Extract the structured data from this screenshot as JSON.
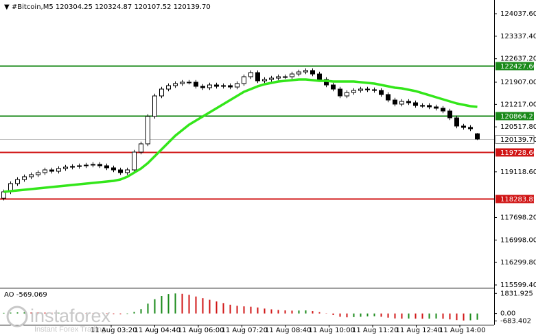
{
  "chart_data": {
    "type": "candlestick",
    "header": {
      "symbol": "#Bitcoin,M5",
      "open": "120304.25",
      "high": "120324.87",
      "low": "120107.52",
      "close": "120139.70"
    },
    "ylim": [
      115513.6,
      124463.8
    ],
    "yticks": [
      {
        "value": 124037.6,
        "label": "124037.60"
      },
      {
        "value": 123337.4,
        "label": "123337.40"
      },
      {
        "value": 122637.2,
        "label": "122637.20"
      },
      {
        "value": 121907,
        "label": "121907.00"
      },
      {
        "value": 121217,
        "label": "121217.00"
      },
      {
        "value": 120517.8,
        "label": "120517.80"
      },
      {
        "value": 119118.6,
        "label": "119118.60"
      },
      {
        "value": 117698.2,
        "label": "117698.20"
      },
      {
        "value": 116998,
        "label": "116998.00"
      },
      {
        "value": 116299.8,
        "label": "116299.80"
      },
      {
        "value": 115599.4,
        "label": "115599.40"
      }
    ],
    "open": [
      118300,
      118497,
      118753,
      118880,
      118966,
      119030,
      119094,
      119179,
      119136,
      119222,
      119264,
      119286,
      119307,
      119328,
      119350,
      119307,
      119243,
      119179,
      119094,
      119179,
      119733,
      119989,
      120841,
      121480,
      121693,
      121800,
      121864,
      121907,
      121907,
      121779,
      121736,
      121821,
      121779,
      121800,
      121757,
      121864,
      122077,
      122205,
      121949,
      121992,
      122034,
      122077,
      122077,
      122162,
      122226,
      122269,
      122162,
      121992,
      121821,
      121693,
      121480,
      121587,
      121651,
      121693,
      121672,
      121651,
      121523,
      121352,
      121225,
      121310,
      121267,
      121182,
      121182,
      121139,
      121097,
      121011,
      120798,
      120543,
      120500,
      120304.25
    ],
    "high": [
      118567,
      118823,
      118950,
      119036,
      119100,
      119164,
      119249,
      119249,
      119292,
      119334,
      119356,
      119377,
      119398,
      119420,
      119420,
      119377,
      119313,
      119249,
      119249,
      119803,
      120059,
      120911,
      121550,
      121763,
      121870,
      121934,
      121977,
      121977,
      121977,
      121849,
      121891,
      121891,
      121870,
      121870,
      121934,
      122147,
      122275,
      122275,
      122062,
      122104,
      122147,
      122147,
      122232,
      122296,
      122339,
      122339,
      122232,
      122062,
      121891,
      121763,
      121657,
      121721,
      121763,
      121763,
      121742,
      121721,
      121593,
      121422,
      121380,
      121380,
      121337,
      121252,
      121252,
      121209,
      121167,
      121081,
      120868,
      120613,
      120570,
      120324.87
    ],
    "low": [
      118230,
      118427,
      118683,
      118810,
      118896,
      118960,
      119024,
      119066,
      119066,
      119152,
      119194,
      119216,
      119237,
      119258,
      119237,
      119173,
      119109,
      119024,
      119024,
      119109,
      119663,
      119919,
      120771,
      121410,
      121623,
      121730,
      121794,
      121837,
      121709,
      121666,
      121666,
      121709,
      121709,
      121687,
      121687,
      121794,
      122007,
      121879,
      121879,
      121922,
      121964,
      122007,
      122007,
      122092,
      122156,
      122092,
      121922,
      121751,
      121623,
      121410,
      121410,
      121517,
      121581,
      121602,
      121581,
      121453,
      121282,
      121155,
      121155,
      121197,
      121112,
      121112,
      121069,
      121027,
      120941,
      120728,
      120473,
      120430,
      120388,
      120107.52
    ],
    "close": [
      118497,
      118753,
      118880,
      118966,
      119030,
      119094,
      119179,
      119136,
      119222,
      119264,
      119286,
      119307,
      119328,
      119350,
      119307,
      119243,
      119179,
      119094,
      119179,
      119733,
      119989,
      120841,
      121480,
      121693,
      121800,
      121864,
      121907,
      121907,
      121779,
      121736,
      121821,
      121779,
      121800,
      121757,
      121864,
      122077,
      122205,
      121949,
      121992,
      122034,
      122077,
      122077,
      122162,
      122226,
      122269,
      122162,
      121992,
      121821,
      121693,
      121480,
      121587,
      121651,
      121693,
      121672,
      121651,
      121523,
      121352,
      121225,
      121310,
      121267,
      121182,
      121182,
      121139,
      121097,
      121011,
      120798,
      120543,
      120500,
      120458,
      120139.7
    ],
    "ma": {
      "color": "#33e61a",
      "values": [
        118497,
        118518,
        118540,
        118561,
        118582,
        118604,
        118625,
        118646,
        118668,
        118689,
        118710,
        118731,
        118753,
        118774,
        118795,
        118817,
        118838,
        118881,
        118966,
        119094,
        119222,
        119392,
        119605,
        119818,
        120031,
        120244,
        120415,
        120585,
        120713,
        120841,
        120969,
        121097,
        121225,
        121353,
        121480,
        121608,
        121694,
        121779,
        121843,
        121885,
        121928,
        121949,
        121971,
        121992,
        121992,
        121971,
        121949,
        121949,
        121928,
        121928,
        121928,
        121928,
        121907,
        121885,
        121864,
        121821,
        121779,
        121736,
        121715,
        121672,
        121630,
        121566,
        121502,
        121438,
        121374,
        121310,
        121246,
        121203,
        121161,
        121139
      ]
    },
    "levels": [
      {
        "value": 122427.6,
        "label": "122427.60",
        "color": "#1a8a1a"
      },
      {
        "value": 120864.21,
        "label": "120864.21",
        "color": "#1a8a1a"
      },
      {
        "value": 119728.6,
        "label": "119728.60",
        "color": "#d01414"
      },
      {
        "value": 118283.85,
        "label": "118283.85",
        "color": "#d01414"
      }
    ],
    "current_price": {
      "value": 120139.7,
      "label": "120139.70"
    },
    "x_labels": [
      "11 Aug 03:20",
      "11 Aug 04:40",
      "11 Aug 06:00",
      "11 Aug 07:20",
      "11 Aug 08:40",
      "11 Aug 10:00",
      "11 Aug 11:20",
      "11 Aug 12:40",
      "11 Aug 14:00"
    ],
    "indicator": {
      "name": "AO",
      "ylim": [
        -900,
        2100
      ],
      "yticks": [
        1831.925,
        {
          "value": 0,
          "label": "0.00"
        },
        -683.402
      ],
      "up_color": "#1a8a1a",
      "down_color": "#d01414",
      "values": [
        50,
        80,
        100,
        110,
        100,
        90,
        80,
        60,
        70,
        60,
        50,
        40,
        30,
        20,
        -10,
        -30,
        -50,
        -60,
        -40,
        150,
        400,
        900,
        1300,
        1600,
        1780,
        1830,
        1800,
        1700,
        1550,
        1400,
        1250,
        1100,
        950,
        800,
        700,
        650,
        620,
        550,
        450,
        380,
        320,
        280,
        260,
        270,
        280,
        220,
        120,
        -20,
        -150,
        -300,
        -350,
        -330,
        -300,
        -260,
        -250,
        -300,
        -380,
        -450,
        -470,
        -460,
        -470,
        -480,
        -470,
        -460,
        -480,
        -540,
        -600,
        -640,
        -620,
        -569.069
      ]
    },
    "watermark": {
      "brand": "instaforex",
      "slogan": "Instant Forex Trading"
    }
  }
}
